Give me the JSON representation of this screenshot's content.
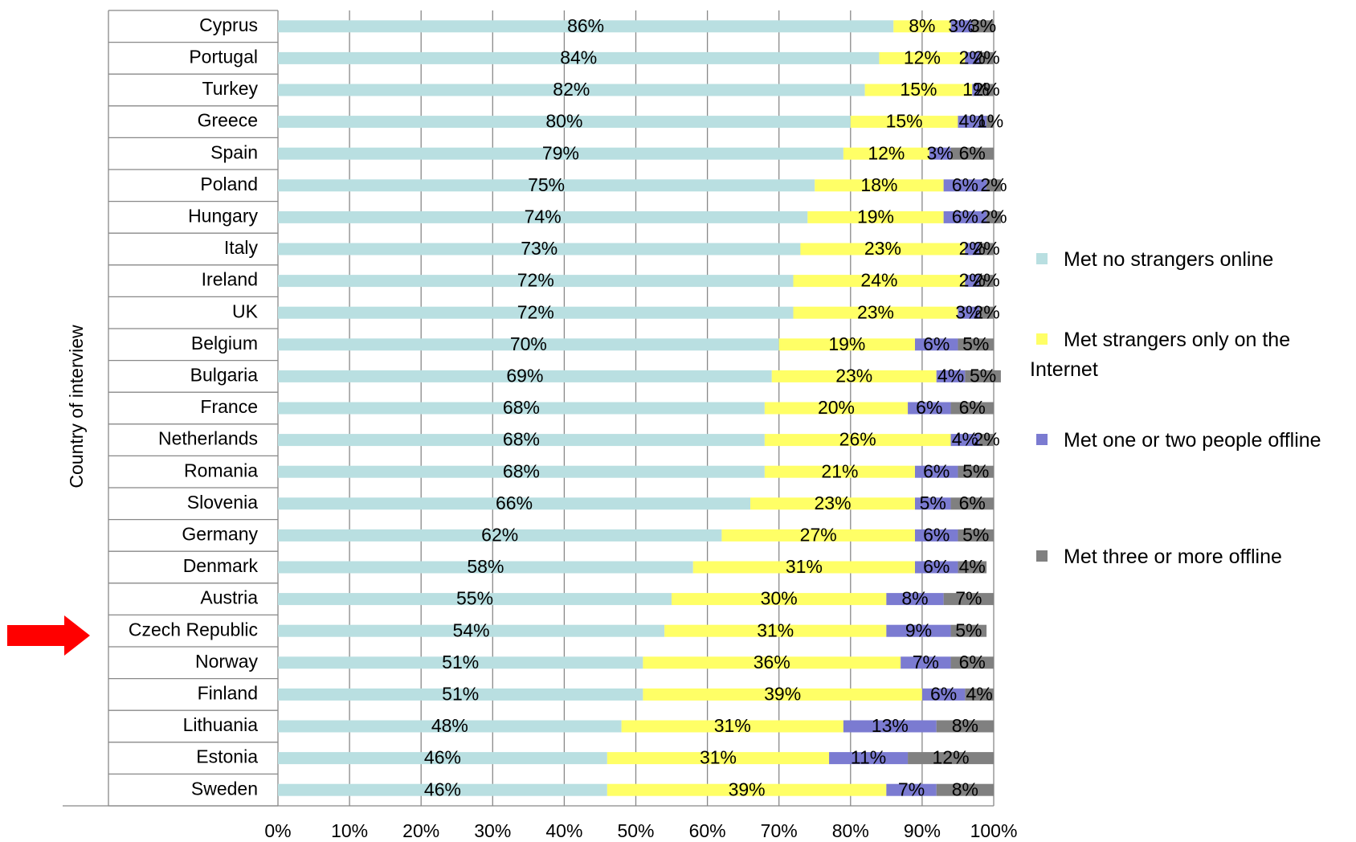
{
  "chart_data": {
    "type": "stacked_barh",
    "ylabel": "Country of interview",
    "categories": [
      "Cyprus",
      "Portugal",
      "Turkey",
      "Greece",
      "Spain",
      "Poland",
      "Hungary",
      "Italy",
      "Ireland",
      "UK",
      "Belgium",
      "Bulgaria",
      "France",
      "Netherlands",
      "Romania",
      "Slovenia",
      "Germany",
      "Denmark",
      "Austria",
      "Czech Republic",
      "Norway",
      "Finland",
      "Lithuania",
      "Estonia",
      "Sweden"
    ],
    "series": [
      {
        "name": "Met no strangers online",
        "color": "#b9dfe1",
        "values": [
          86,
          84,
          82,
          80,
          79,
          75,
          74,
          73,
          72,
          72,
          70,
          69,
          68,
          68,
          68,
          66,
          62,
          58,
          55,
          54,
          51,
          51,
          48,
          46,
          46
        ],
        "value_labels": [
          "86%",
          "84%",
          "82%",
          "80%",
          "79%",
          "75%",
          "74%",
          "73%",
          "72%",
          "72%",
          "70%",
          "69%",
          "68%",
          "68%",
          "68%",
          "66%",
          "62%",
          "58%",
          "55%",
          "54%",
          "51%",
          "51%",
          "48%",
          "46%",
          "46%"
        ]
      },
      {
        "name": "Met strangers only on the Internet",
        "color": "#ffff66",
        "values": [
          8,
          12,
          15,
          15,
          12,
          18,
          19,
          23,
          24,
          23,
          19,
          23,
          20,
          26,
          21,
          23,
          27,
          31,
          30,
          31,
          36,
          39,
          31,
          31,
          39
        ],
        "value_labels": [
          "8%",
          "12%",
          "15%",
          "15%",
          "12%",
          "18%",
          "19%",
          "23%",
          "24%",
          "23%",
          "19%",
          "23%",
          "20%",
          "26%",
          "21%",
          "23%",
          "27%",
          "31%",
          "30%",
          "31%",
          "36%",
          "39%",
          "31%",
          "31%",
          "39%"
        ]
      },
      {
        "name": "Met one or two people offline",
        "color": "#7b7bd1",
        "values": [
          3,
          2,
          1,
          4,
          3,
          6,
          6,
          2,
          2,
          3,
          6,
          4,
          6,
          4,
          6,
          5,
          6,
          6,
          8,
          9,
          7,
          6,
          13,
          11,
          7
        ],
        "value_labels": [
          "3%",
          "2%",
          "1%",
          "4%",
          "3%",
          "6%",
          "6%",
          "2%",
          "2%",
          "3%",
          "6%",
          "4%",
          "6%",
          "4%",
          "6%",
          "5%",
          "6%",
          "6%",
          "8%",
          "9%",
          "7%",
          "6%",
          "13%",
          "11%",
          "7%"
        ]
      },
      {
        "name": "Met three or more offline",
        "color": "#808080",
        "values": [
          3,
          2,
          2,
          1,
          6,
          2,
          2,
          2,
          2,
          2,
          5,
          5,
          6,
          2,
          5,
          6,
          5,
          4,
          7,
          5,
          6,
          4,
          8,
          12,
          8
        ],
        "value_labels": [
          "3%",
          "2%",
          "2%",
          "1%",
          "6%",
          "2%",
          "2%",
          "2%",
          "2%",
          "2%",
          "5%",
          "5%",
          "6%",
          "2%",
          "5%",
          "6%",
          "5%",
          "4%",
          "7%",
          "5%",
          "6%",
          "4%",
          "8%",
          "12%",
          "8%"
        ]
      }
    ],
    "xlim": [
      0,
      100
    ],
    "xticks": [
      {
        "value": 0,
        "label": "0%"
      },
      {
        "value": 10,
        "label": "10%"
      },
      {
        "value": 20,
        "label": "20%"
      },
      {
        "value": 30,
        "label": "30%"
      },
      {
        "value": 40,
        "label": "40%"
      },
      {
        "value": 50,
        "label": "50%"
      },
      {
        "value": 60,
        "label": "60%"
      },
      {
        "value": 70,
        "label": "70%"
      },
      {
        "value": 80,
        "label": "80%"
      },
      {
        "value": 90,
        "label": "90%"
      },
      {
        "value": 100,
        "label": "100%"
      }
    ],
    "grid": true,
    "legend": "right"
  }
}
